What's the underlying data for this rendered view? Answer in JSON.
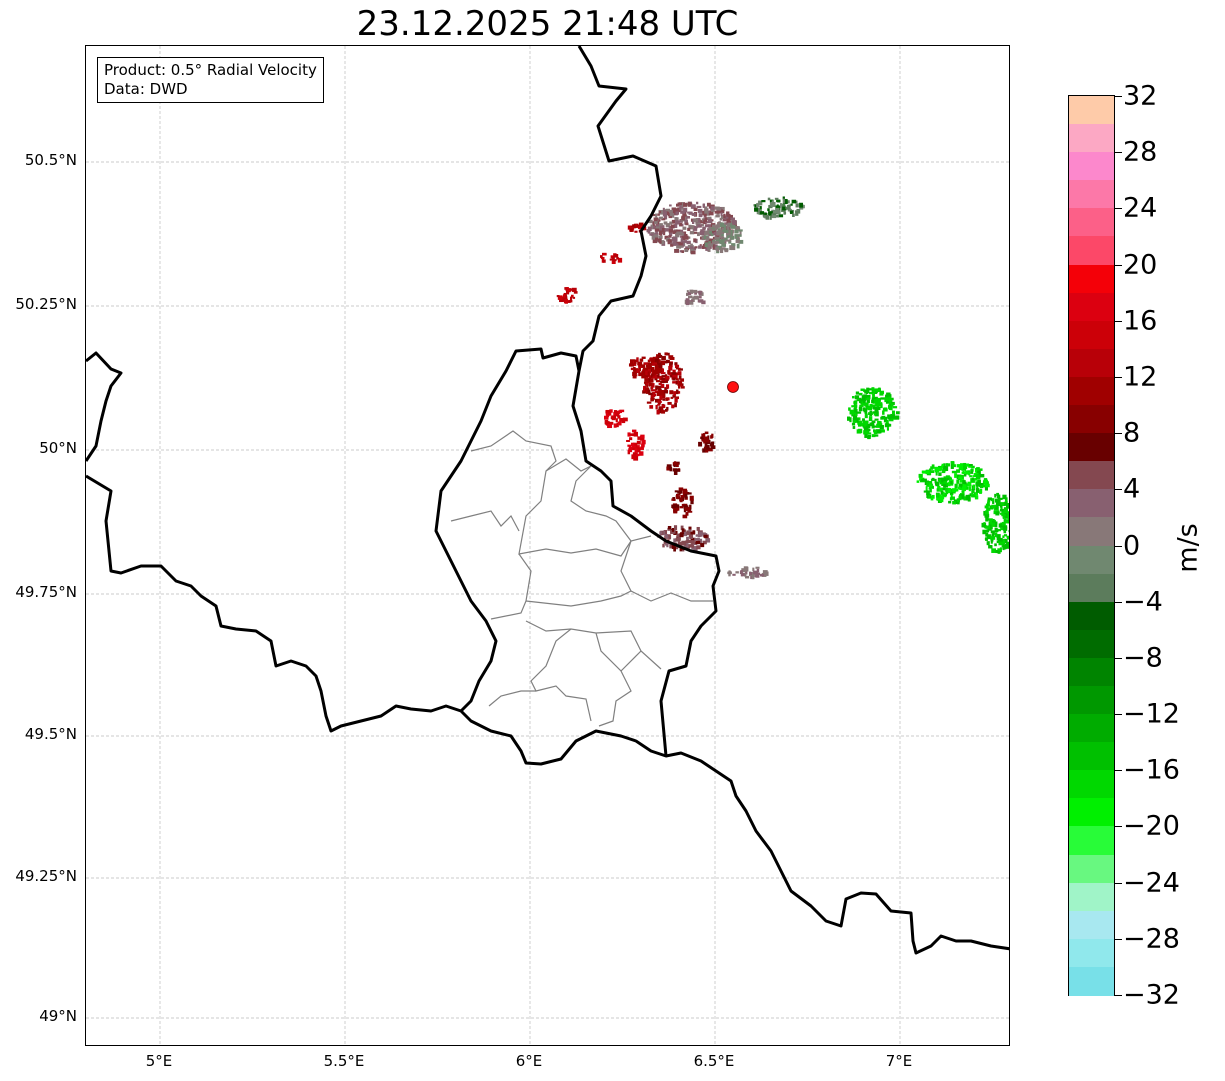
{
  "title": "23.12.2025 21:48 UTC",
  "legend": {
    "line1": "Product: 0.5° Radial Velocity",
    "line2": "Data: DWD"
  },
  "lat_ticks": [
    "50.5°N",
    "50.25°N",
    "50°N",
    "49.75°N",
    "49.5°N",
    "49.25°N",
    "49°N"
  ],
  "lon_ticks": [
    "5°E",
    "5.5°E",
    "6°E",
    "6.5°E",
    "7°E"
  ],
  "colorbar": {
    "unit": "m/s",
    "labels": [
      "32",
      "28",
      "24",
      "20",
      "16",
      "12",
      "8",
      "4",
      "0",
      "−4",
      "−8",
      "−12",
      "−16",
      "−20",
      "−24",
      "−28",
      "−32"
    ],
    "range": [
      -32,
      32
    ],
    "colors": [
      "#fecba9",
      "#fca8c4",
      "#fc88cc",
      "#fc78a8",
      "#fc6088",
      "#fc4868",
      "#f40008",
      "#dc0010",
      "#cc0008",
      "#b80008",
      "#a00000",
      "#880000",
      "#680000",
      "#844850",
      "#886070",
      "#887878",
      "#708870",
      "#5c7c5c",
      "#005c00",
      "#006c00",
      "#008400",
      "#009800",
      "#00ac00",
      "#00c000",
      "#00d800",
      "#00f000",
      "#28fc38",
      "#68f880",
      "#a0f4c8",
      "#a8e8f0",
      "#90e8ec",
      "#78e0e8"
    ]
  },
  "radar_site_color": "#ff1010"
}
